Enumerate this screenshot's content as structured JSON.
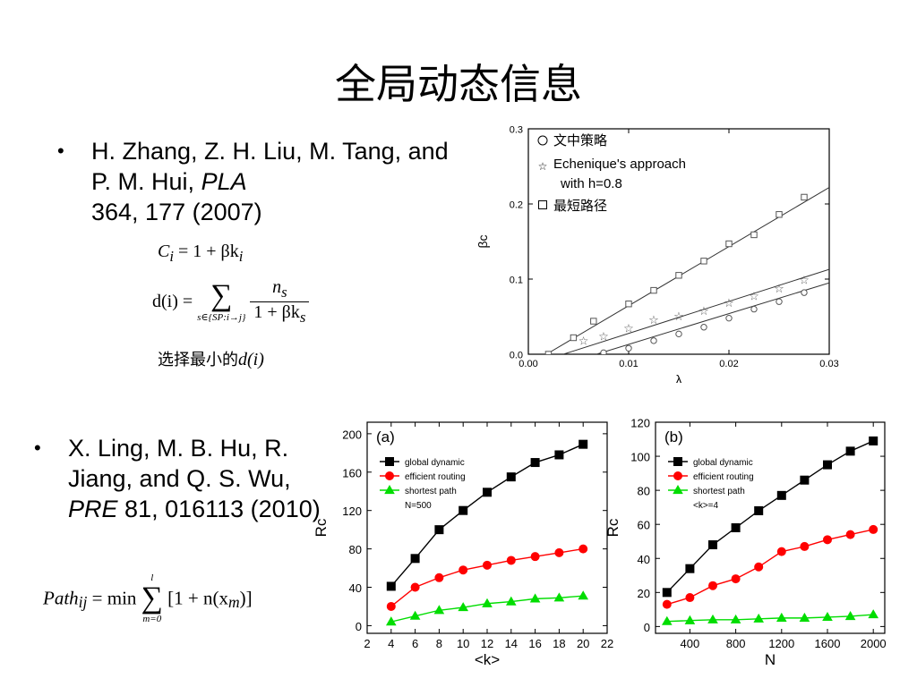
{
  "slide": {
    "title": "全局动态信息"
  },
  "bullet1": {
    "authors": "H. Zhang, Z. H. Liu, M. Tang, and P. M. Hui,",
    "journal": "PLA",
    "ref": "364, 177 (2007)"
  },
  "formula1": {
    "c_lhs": "C",
    "c_sub": "i",
    "c_rhs": "= 1 + βk",
    "c_rhs_sub": "i",
    "d_lhs": "d(i) =",
    "d_sum_under": "s∈{SP:i→j}",
    "d_num": "n",
    "d_num_sub": "s",
    "d_den": "1 + βk",
    "d_den_sub": "s",
    "note": "选择最小的",
    "note_math": "d(i)"
  },
  "bullet2": {
    "authors": "X. Ling, M. B. Hu, R. Jiang, and Q. S. Wu,",
    "journal": "PRE",
    "ref": "81, 016113 (2010)"
  },
  "formula2": {
    "lhs": "Path",
    "lhs_sub": "ij",
    "min": "= min",
    "sum_over": "l",
    "sum_under": "m=0",
    "term": "[1 + n(x",
    "term_sub": "m",
    "term_end": ")]"
  },
  "chart_data": [
    {
      "id": "beta-chart",
      "type": "scatter",
      "xlabel": "λ",
      "ylabel": "βc",
      "xlim": [
        0.0,
        0.03
      ],
      "ylim": [
        0.0,
        0.3
      ],
      "xticks": [
        "0.00",
        "0.01",
        "0.02",
        "0.03"
      ],
      "xtick_values": [
        0,
        0.01,
        0.02,
        0.03
      ],
      "yticks": [
        "0.0",
        "0.1",
        "0.2",
        "0.3"
      ],
      "ytick_values": [
        0,
        0.1,
        0.2,
        0.3
      ],
      "legend_position": "top-left",
      "series": [
        {
          "name": "文中策略",
          "marker": "circle",
          "x": [
            0.0075,
            0.01,
            0.0125,
            0.015,
            0.0175,
            0.02,
            0.0225,
            0.025,
            0.0275
          ],
          "y": [
            0.002,
            0.008,
            0.018,
            0.027,
            0.036,
            0.048,
            0.06,
            0.07,
            0.082
          ],
          "fit": [
            [
              0.0068,
              0.0
            ],
            [
              0.03,
              0.095
            ]
          ]
        },
        {
          "name": "Echenique's approach with h=0.8",
          "marker": "star",
          "x": [
            0.0055,
            0.0075,
            0.01,
            0.0125,
            0.015,
            0.0175,
            0.02,
            0.0225,
            0.025,
            0.0275
          ],
          "y": [
            0.017,
            0.023,
            0.034,
            0.045,
            0.05,
            0.057,
            0.068,
            0.077,
            0.087,
            0.098
          ],
          "fit": [
            [
              0.0035,
              0.0
            ],
            [
              0.03,
              0.113
            ]
          ]
        },
        {
          "name": "最短路径",
          "marker": "square",
          "x": [
            0.002,
            0.0045,
            0.0065,
            0.01,
            0.0125,
            0.015,
            0.0175,
            0.02,
            0.0225,
            0.025,
            0.0275
          ],
          "y": [
            0.0,
            0.022,
            0.044,
            0.067,
            0.085,
            0.105,
            0.124,
            0.147,
            0.159,
            0.186,
            0.209
          ],
          "fit": [
            [
              0.0018,
              0.0
            ],
            [
              0.03,
              0.222
            ]
          ]
        }
      ]
    },
    {
      "id": "rc-k-chart",
      "type": "line",
      "panel_label": "(a)",
      "xlabel": "<k>",
      "ylabel": "Rc",
      "xlim": [
        2,
        22
      ],
      "ylim": [
        -8,
        212
      ],
      "xticks": [
        "2",
        "4",
        "6",
        "8",
        "10",
        "12",
        "14",
        "16",
        "18",
        "20",
        "22"
      ],
      "xtick_values": [
        2,
        4,
        6,
        8,
        10,
        12,
        14,
        16,
        18,
        20,
        22
      ],
      "yticks": [
        "0",
        "40",
        "80",
        "120",
        "160",
        "200"
      ],
      "ytick_values": [
        0,
        40,
        80,
        120,
        160,
        200
      ],
      "legend_position": "top-left",
      "legend_note": "N=500",
      "x": [
        4,
        6,
        8,
        10,
        12,
        14,
        16,
        18,
        20
      ],
      "series": [
        {
          "name": "global dynamic",
          "color": "#000000",
          "marker": "square",
          "values": [
            41,
            70,
            100,
            120,
            139,
            155,
            170,
            178,
            189
          ]
        },
        {
          "name": "efficient routing",
          "color": "#ff0000",
          "marker": "circle",
          "values": [
            20,
            40,
            50,
            58,
            63,
            68,
            72,
            76,
            80
          ]
        },
        {
          "name": "shortest path",
          "color": "#00dd00",
          "marker": "triangle",
          "values": [
            4,
            10,
            16,
            19,
            23,
            25,
            28,
            29,
            31
          ]
        }
      ]
    },
    {
      "id": "rc-n-chart",
      "type": "line",
      "panel_label": "(b)",
      "xlabel": "N",
      "ylabel": "Rc",
      "xlim": [
        100,
        2100
      ],
      "ylim": [
        -4,
        120
      ],
      "xticks": [
        "400",
        "800",
        "1200",
        "1600",
        "2000"
      ],
      "xtick_values": [
        400,
        800,
        1200,
        1600,
        2000
      ],
      "yticks": [
        "0",
        "20",
        "40",
        "60",
        "80",
        "100",
        "120"
      ],
      "ytick_values": [
        0,
        20,
        40,
        60,
        80,
        100,
        120
      ],
      "legend_position": "top-left",
      "legend_note": "<k>=4",
      "x": [
        200,
        400,
        600,
        800,
        1000,
        1200,
        1400,
        1600,
        1800,
        2000
      ],
      "series": [
        {
          "name": "global dynamic",
          "color": "#000000",
          "marker": "square",
          "values": [
            20,
            34,
            48,
            58,
            68,
            77,
            86,
            95,
            103,
            109
          ]
        },
        {
          "name": "efficient routing",
          "color": "#ff0000",
          "marker": "circle",
          "values": [
            13,
            17,
            24,
            28,
            35,
            44,
            47,
            51,
            54,
            57
          ]
        },
        {
          "name": "shortest path",
          "color": "#00dd00",
          "marker": "triangle",
          "values": [
            3,
            3.5,
            4,
            4,
            4.5,
            5,
            5,
            5.5,
            6,
            7
          ]
        }
      ]
    }
  ]
}
